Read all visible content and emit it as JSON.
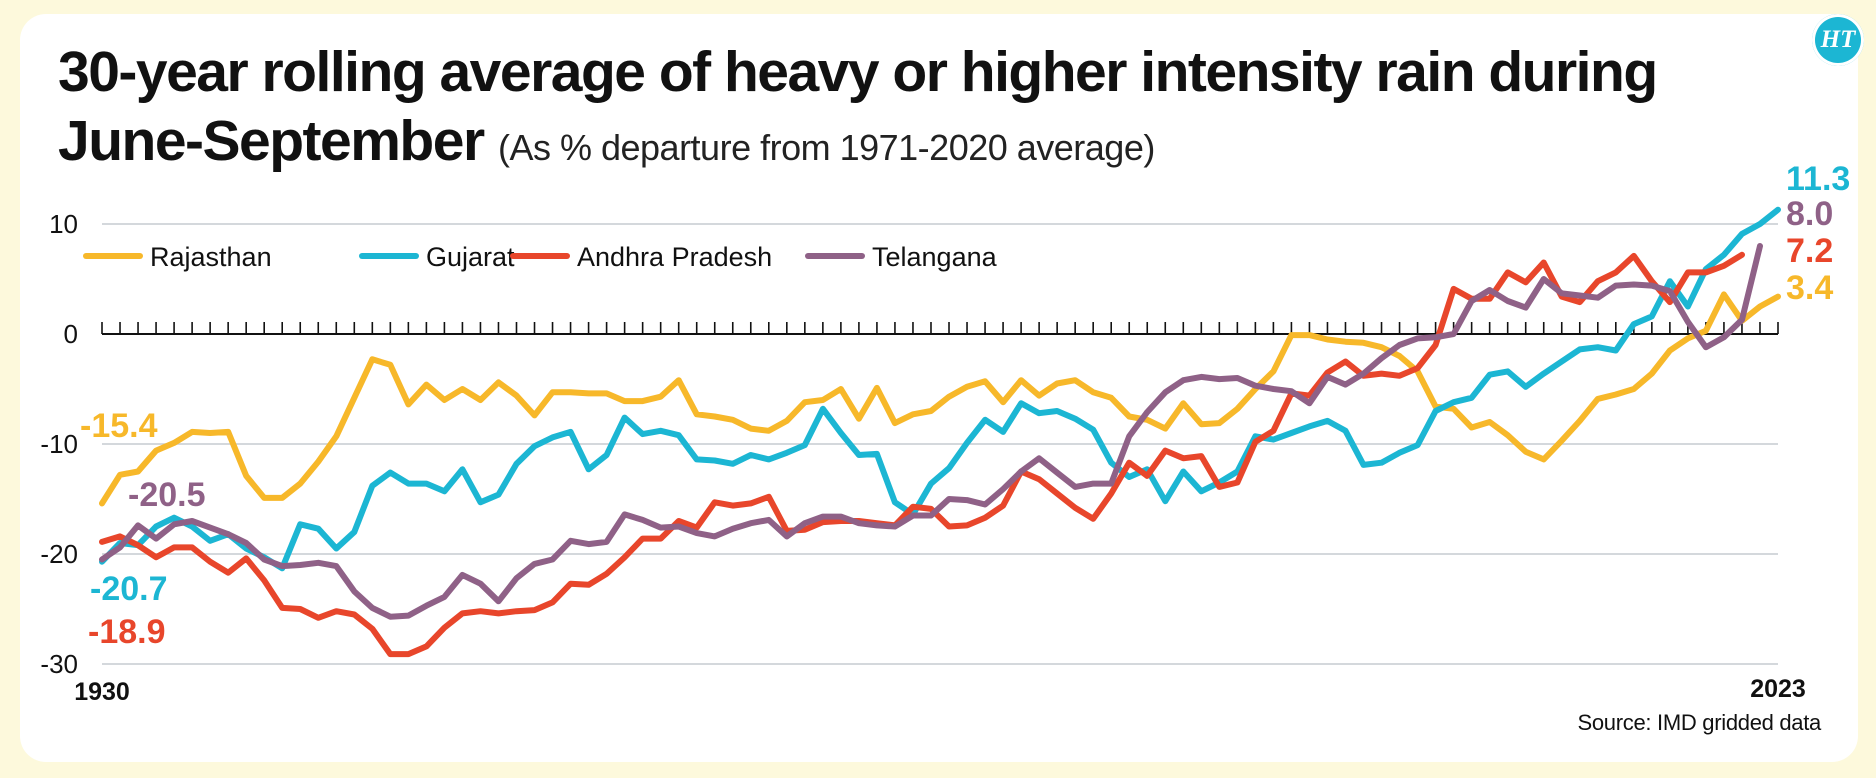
{
  "header": {
    "title": "30-year rolling average of heavy or higher intensity rain during June-September",
    "subtitle": "(As % departure from 1971-2020 average)",
    "logo_text": "HT"
  },
  "footer": {
    "source": "Source: IMD gridded data"
  },
  "chart_data": {
    "type": "line",
    "title": "30-year rolling average of heavy or higher intensity rain during June-September",
    "subtitle": "(As % departure from 1971-2020 average)",
    "xlabel": "",
    "ylabel": "",
    "x_start": 1930,
    "x_end": 2023,
    "x_tick_labels": [
      "1930",
      "2023"
    ],
    "ylim": [
      -30,
      10
    ],
    "y_ticks": [
      10,
      0,
      -10,
      -20,
      -30
    ],
    "y_tick_labels": [
      "10",
      "0",
      "-10",
      "-20",
      "-30"
    ],
    "grid": true,
    "legend": "top-left",
    "series": [
      {
        "name": "Rajasthan",
        "color": "#f7b82a",
        "start_label": "-15.4",
        "end_label": "3.4",
        "values": [
          -15.4,
          -12.8,
          -12.5,
          -10.6,
          -9.9,
          -8.9,
          -9.0,
          -8.9,
          -12.9,
          -14.9,
          -14.9,
          -13.6,
          -11.6,
          -9.3,
          -5.8,
          -2.3,
          -2.8,
          -6.4,
          -4.6,
          -6.0,
          -5.0,
          -6.0,
          -4.4,
          -5.6,
          -7.4,
          -5.3,
          -5.3,
          -5.4,
          -5.4,
          -6.1,
          -6.1,
          -5.7,
          -4.2,
          -7.3,
          -7.5,
          -7.8,
          -8.6,
          -8.8,
          -7.9,
          -6.2,
          -6.0,
          -5.0,
          -7.7,
          -4.9,
          -8.1,
          -7.3,
          -7.0,
          -5.7,
          -4.8,
          -4.3,
          -6.2,
          -4.2,
          -5.6,
          -4.5,
          -4.2,
          -5.3,
          -5.8,
          -7.5,
          -7.8,
          -8.6,
          -6.3,
          -8.2,
          -8.1,
          -6.8,
          -5.0,
          -3.4,
          -0.1,
          -0.1,
          -0.5,
          -0.7,
          -0.8,
          -1.2,
          -2.0,
          -3.4,
          -6.6,
          -6.8,
          -8.5,
          -8.0,
          -9.2,
          -10.7,
          -11.4,
          -9.7,
          -7.9,
          -5.9,
          -5.5,
          -5.0,
          -3.6,
          -1.5,
          -0.4,
          0.3,
          3.6,
          1.2,
          2.5,
          3.4
        ]
      },
      {
        "name": "Gujarat",
        "color": "#1cb6d3",
        "start_label": "-20.7",
        "end_label": "11.3",
        "values": [
          -20.7,
          -19.0,
          -19.2,
          -17.5,
          -16.7,
          -17.5,
          -18.8,
          -18.2,
          -19.5,
          -20.3,
          -21.3,
          -17.3,
          -17.7,
          -19.5,
          -18.0,
          -13.8,
          -12.6,
          -13.6,
          -13.6,
          -14.3,
          -12.3,
          -15.3,
          -14.6,
          -11.8,
          -10.2,
          -9.4,
          -8.9,
          -12.3,
          -11.0,
          -7.6,
          -9.1,
          -8.8,
          -9.2,
          -11.4,
          -11.5,
          -11.8,
          -11.0,
          -11.4,
          -10.8,
          -10.1,
          -6.8,
          -9.0,
          -11.0,
          -10.9,
          -15.3,
          -16.4,
          -13.6,
          -12.2,
          -9.9,
          -7.8,
          -8.9,
          -6.3,
          -7.2,
          -7.0,
          -7.7,
          -8.7,
          -11.7,
          -13.0,
          -12.3,
          -15.2,
          -12.5,
          -14.3,
          -13.5,
          -12.5,
          -9.3,
          -9.6,
          -9.0,
          -8.4,
          -7.9,
          -8.8,
          -11.9,
          -11.7,
          -10.8,
          -10.1,
          -7.0,
          -6.2,
          -5.8,
          -3.7,
          -3.4,
          -4.8,
          -3.6,
          -2.5,
          -1.4,
          -1.2,
          -1.5,
          0.9,
          1.6,
          4.8,
          2.5,
          5.9,
          7.2,
          9.1,
          10.0,
          11.3
        ]
      },
      {
        "name": "Andhra Pradesh",
        "color": "#e8462b",
        "start_label": "-18.9",
        "end_label": "7.2",
        "values": [
          -18.9,
          -18.4,
          -19.2,
          -20.3,
          -19.4,
          -19.4,
          -20.7,
          -21.7,
          -20.4,
          -22.4,
          -24.9,
          -25.0,
          -25.8,
          -25.2,
          -25.5,
          -26.8,
          -29.1,
          -29.1,
          -28.4,
          -26.7,
          -25.4,
          -25.2,
          -25.4,
          -25.2,
          -25.1,
          -24.4,
          -22.7,
          -22.8,
          -21.8,
          -20.3,
          -18.6,
          -18.6,
          -17.0,
          -17.6,
          -15.3,
          -15.6,
          -15.4,
          -14.8,
          -17.9,
          -17.8,
          -17.1,
          -17.0,
          -17.0,
          -17.2,
          -17.4,
          -15.7,
          -15.9,
          -17.5,
          -17.4,
          -16.7,
          -15.6,
          -12.5,
          -13.2,
          -14.5,
          -15.8,
          -16.8,
          -14.5,
          -11.7,
          -12.9,
          -10.6,
          -11.3,
          -11.1,
          -13.9,
          -13.5,
          -9.8,
          -8.8,
          -5.4,
          -5.6,
          -3.5,
          -2.5,
          -3.8,
          -3.6,
          -3.8,
          -3.1,
          -1.0,
          4.1,
          3.2,
          3.2,
          5.6,
          4.7,
          6.5,
          3.4,
          2.9,
          4.8,
          5.6,
          7.1,
          4.8,
          2.9,
          5.6,
          5.6,
          6.2,
          7.2
        ]
      },
      {
        "name": "Telangana",
        "color": "#8f6187",
        "start_label": "-20.5",
        "end_label": "8.0",
        "values": [
          -20.5,
          -19.4,
          -17.4,
          -18.6,
          -17.3,
          -17.0,
          -17.6,
          -18.2,
          -19.0,
          -20.5,
          -21.1,
          -21.0,
          -20.8,
          -21.1,
          -23.4,
          -24.9,
          -25.7,
          -25.6,
          -24.7,
          -23.9,
          -21.9,
          -22.7,
          -24.3,
          -22.2,
          -20.9,
          -20.5,
          -18.8,
          -19.1,
          -18.9,
          -16.4,
          -16.9,
          -17.6,
          -17.5,
          -18.1,
          -18.4,
          -17.7,
          -17.2,
          -16.9,
          -18.4,
          -17.2,
          -16.6,
          -16.6,
          -17.2,
          -17.4,
          -17.5,
          -16.5,
          -16.5,
          -15.0,
          -15.1,
          -15.5,
          -14.1,
          -12.5,
          -11.3,
          -12.6,
          -13.9,
          -13.6,
          -13.6,
          -9.3,
          -7.1,
          -5.3,
          -4.2,
          -3.9,
          -4.1,
          -4.0,
          -4.7,
          -5.0,
          -5.2,
          -6.3,
          -3.9,
          -4.6,
          -3.6,
          -2.2,
          -1.0,
          -0.4,
          -0.3,
          0.0,
          3.0,
          4.0,
          3.0,
          2.4,
          5.0,
          3.7,
          3.5,
          3.3,
          4.4,
          4.5,
          4.4,
          3.9,
          1.1,
          -1.2,
          -0.3,
          1.3,
          8.0
        ]
      }
    ]
  }
}
